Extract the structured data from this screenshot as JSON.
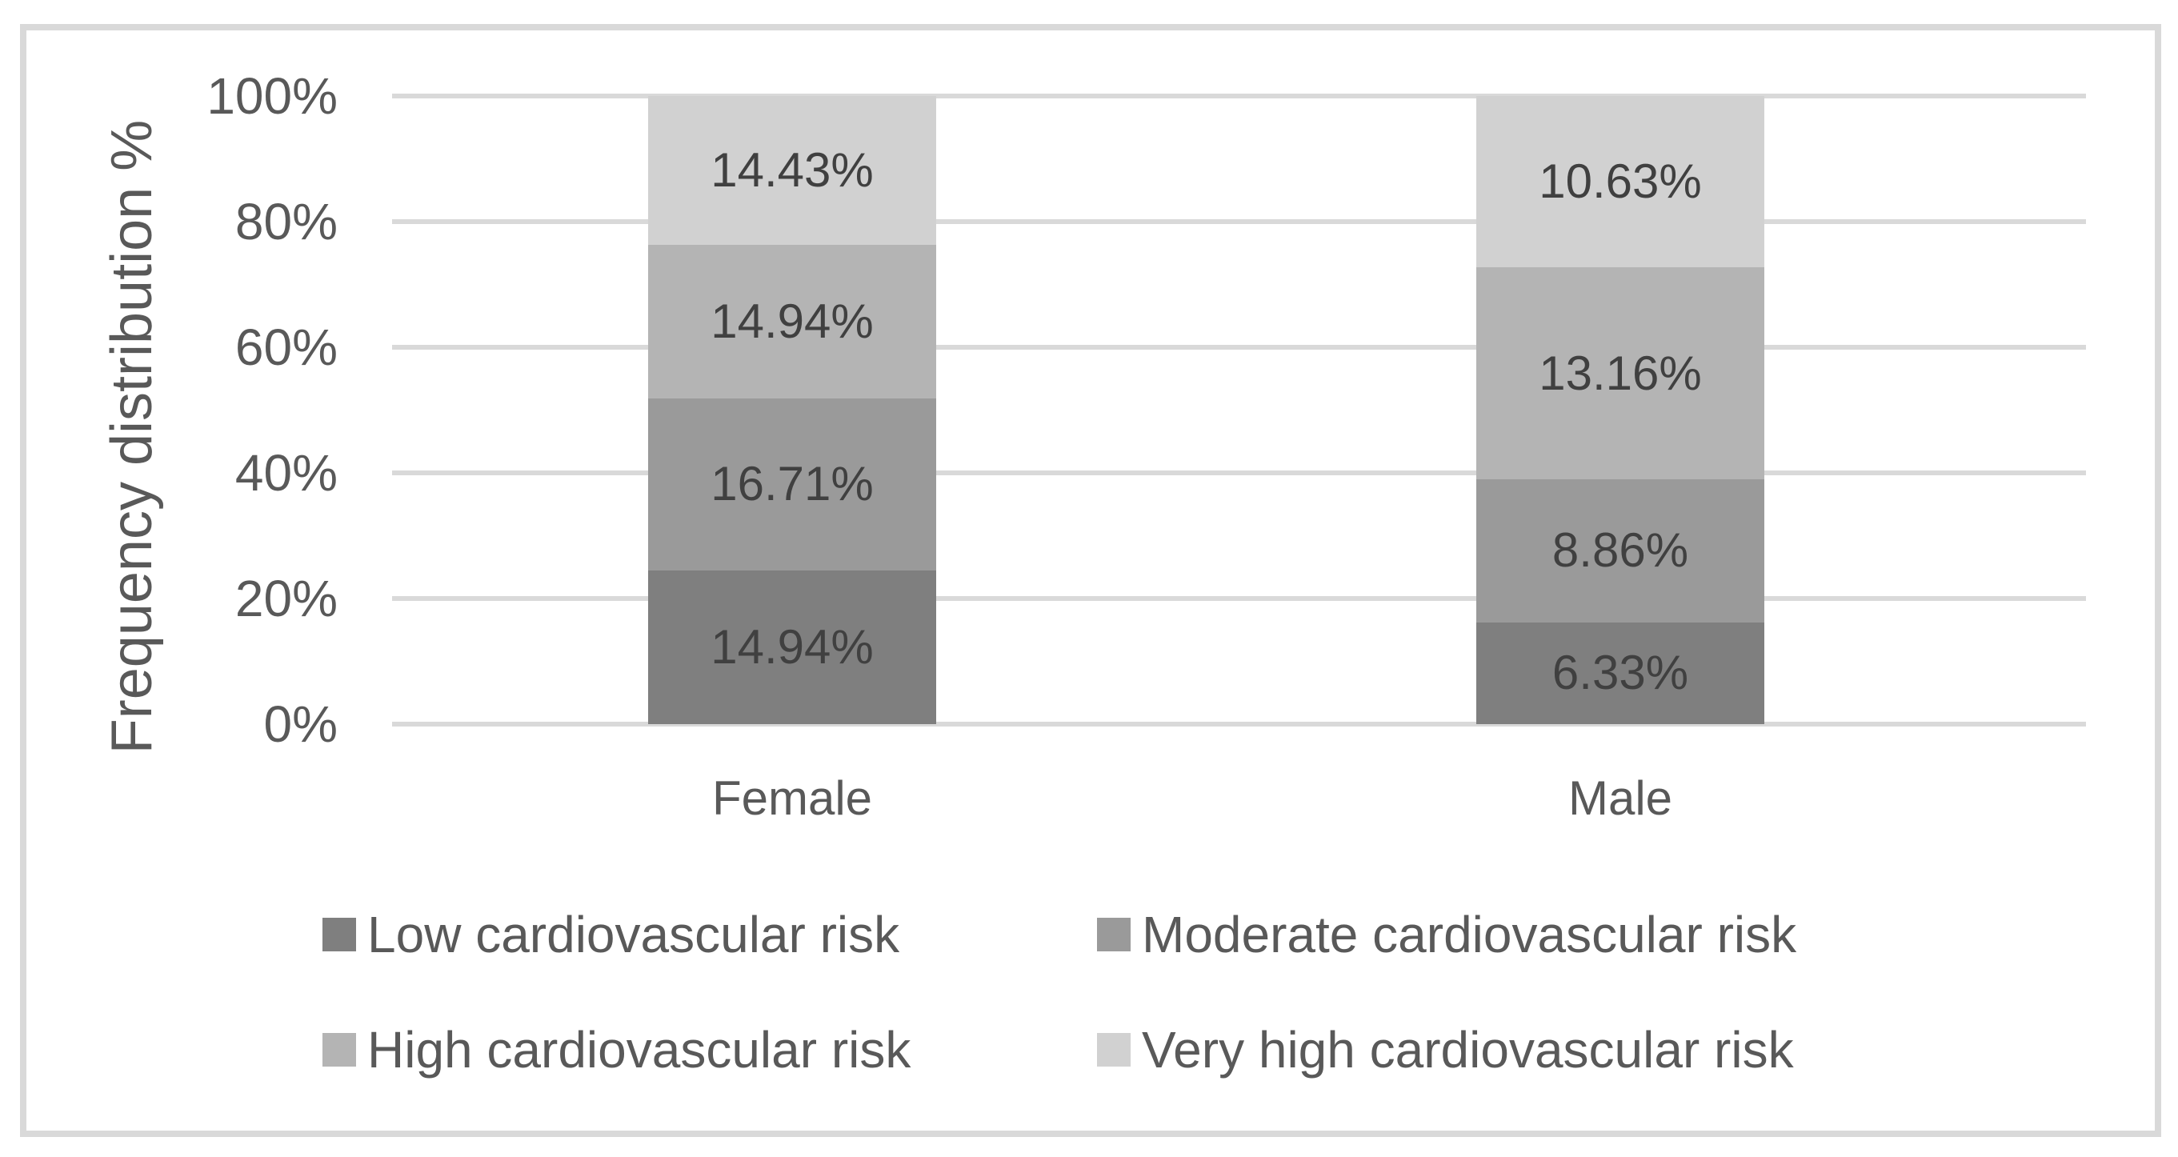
{
  "chart_data": {
    "type": "bar",
    "subtype": "stacked-column-100pct",
    "normalized": true,
    "title": "",
    "xlabel": "",
    "ylabel": "Frequency distribution %",
    "categories": [
      "Female",
      "Male"
    ],
    "yticks": [
      "0%",
      "20%",
      "40%",
      "60%",
      "80%",
      "100%"
    ],
    "ylim": [
      0,
      100
    ],
    "grid": "horizontal",
    "legend_position": "bottom",
    "series": [
      {
        "name": "Low cardiovascular risk",
        "color": "#7f7f7f",
        "values": [
          14.94,
          6.33
        ],
        "labels": [
          "14.94%",
          "6.33%"
        ]
      },
      {
        "name": "Moderate cardiovascular risk",
        "color": "#9a9a9a",
        "values": [
          16.71,
          8.86
        ],
        "labels": [
          "16.71%",
          "8.86%"
        ]
      },
      {
        "name": "High cardiovascular risk",
        "color": "#b4b4b4",
        "values": [
          14.94,
          13.16
        ],
        "labels": [
          "14.94%",
          "13.16%"
        ]
      },
      {
        "name": "Very high cardiovascular risk",
        "color": "#d1d1d1",
        "values": [
          14.43,
          10.63
        ],
        "labels": [
          "14.43%",
          "10.63%"
        ]
      }
    ]
  },
  "colors": {
    "gridline": "#d9d9d9",
    "frame_border": "#d9d9d9",
    "axis_text": "#595959",
    "data_label_text": "#404040",
    "background": "#ffffff"
  }
}
